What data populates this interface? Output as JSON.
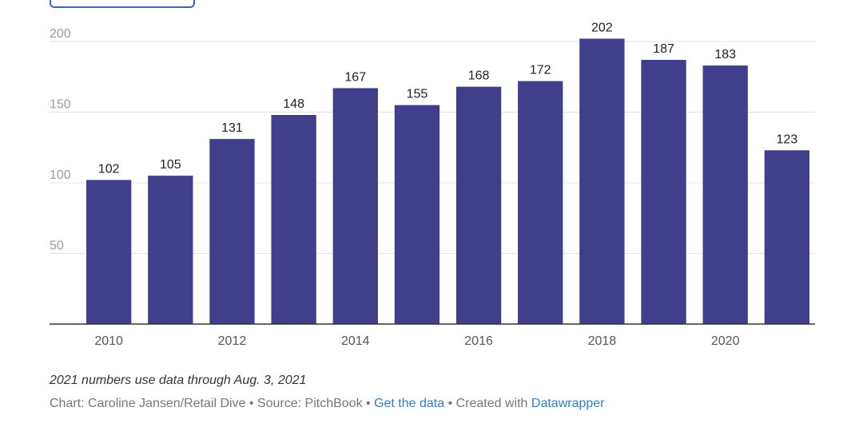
{
  "chart_data": {
    "type": "bar",
    "categories": [
      "2010",
      "2011",
      "2012",
      "2013",
      "2014",
      "2015",
      "2016",
      "2017",
      "2018",
      "2019",
      "2020",
      "2021"
    ],
    "values": [
      102,
      105,
      131,
      148,
      167,
      155,
      168,
      172,
      202,
      187,
      183,
      123
    ],
    "data_labels": [
      "102",
      "105",
      "131",
      "148",
      "167",
      "155",
      "168",
      "172",
      "202",
      "187",
      "183",
      "123"
    ],
    "x_tick_labels": [
      "2010",
      "",
      "2012",
      "",
      "2014",
      "",
      "2016",
      "",
      "2018",
      "",
      "2020",
      ""
    ],
    "y_ticks": [
      50,
      100,
      150,
      200
    ],
    "y_tick_labels": [
      "50",
      "100",
      "150",
      "200"
    ],
    "ylim": [
      0,
      200
    ],
    "grid": true,
    "legend": "none",
    "bar_color": "#413e8c",
    "title": "",
    "xlabel": "",
    "ylabel": ""
  },
  "footer": {
    "note": "2021 numbers use data through Aug. 3, 2021",
    "credit_prefix": "Chart: Caroline Jansen/Retail Dive • Source: PitchBook • ",
    "get_data_link": "Get the data",
    "separator": " • Created with ",
    "datawrapper_link": "Datawrapper"
  }
}
